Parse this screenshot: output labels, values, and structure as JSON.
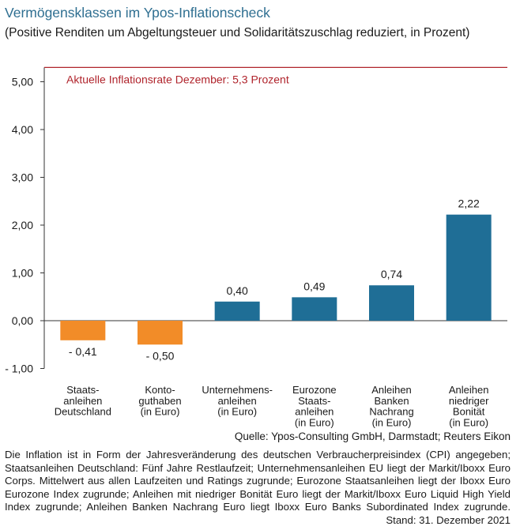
{
  "title": "Vermögensklassen im Ypos-Inflationscheck",
  "subtitle": "(Positive Renditen um Abgeltungsteuer und Solidaritätszuschlag reduziert, in Prozent)",
  "source": "Quelle: Ypos-Consulting GmbH, Darmstadt; Reuters Eikon",
  "footnote": "Die Inflation ist in Form der Jahresveränderung des deutschen Verbraucherpreisindex (CPI) angegeben; Staatsanleihen Deutschland: Fünf Jahre Restlaufzeit; Unternehmensanleihen EU liegt der Markit/Iboxx Euro Corps. Mittelwert aus allen Laufzeiten und Ratings zugrunde; Eurozone Staatsanleihen liegt der Iboxx Euro Eurozone Index zugrunde; Anleihen mit niedriger Bonität Euro liegt der Markit/Iboxx Euro Liquid High Yield Index zugrunde; Anleihen Banken Nachrang Euro liegt Iboxx Euro Banks Subordinated Index zugrunde.",
  "stand": "Stand: 31. Dezember 2021",
  "chart_data": {
    "type": "bar",
    "categories": [
      [
        "Staats-",
        "anleihen",
        "Deutschland"
      ],
      [
        "Konto-",
        "guthaben",
        "(in Euro)"
      ],
      [
        "Unternehmens-",
        "anleihen",
        "(in Euro)"
      ],
      [
        "Eurozone",
        "Staats-",
        "anleihen",
        "(in Euro)"
      ],
      [
        "Anleihen",
        "Banken",
        "Nachrang",
        "(in Euro)"
      ],
      [
        "Anleihen",
        "niedriger",
        "Bonität",
        "(in Euro)"
      ]
    ],
    "values": [
      -0.41,
      -0.5,
      0.4,
      0.49,
      0.74,
      2.22
    ],
    "value_labels": [
      "- 0,41",
      "- 0,50",
      "0,40",
      "0,49",
      "0,74",
      "2,22"
    ],
    "ylim": [
      -1.0,
      5.3
    ],
    "yticks": [
      -1.0,
      0.0,
      1.0,
      2.0,
      3.0,
      4.0,
      5.0
    ],
    "ytick_labels": [
      "- 1,00",
      "0,00",
      "1,00",
      "2,00",
      "3,00",
      "4,00",
      "5,00"
    ],
    "reference_line": {
      "value": 5.3,
      "label": "Aktuelle Inflationsrate Dezember: 5,3 Prozent",
      "color": "#b0242c"
    },
    "colors": {
      "negative": "#f28c28",
      "positive": "#1f6e96",
      "axis": "#333333",
      "grid": "#cccccc"
    },
    "grid": false
  }
}
